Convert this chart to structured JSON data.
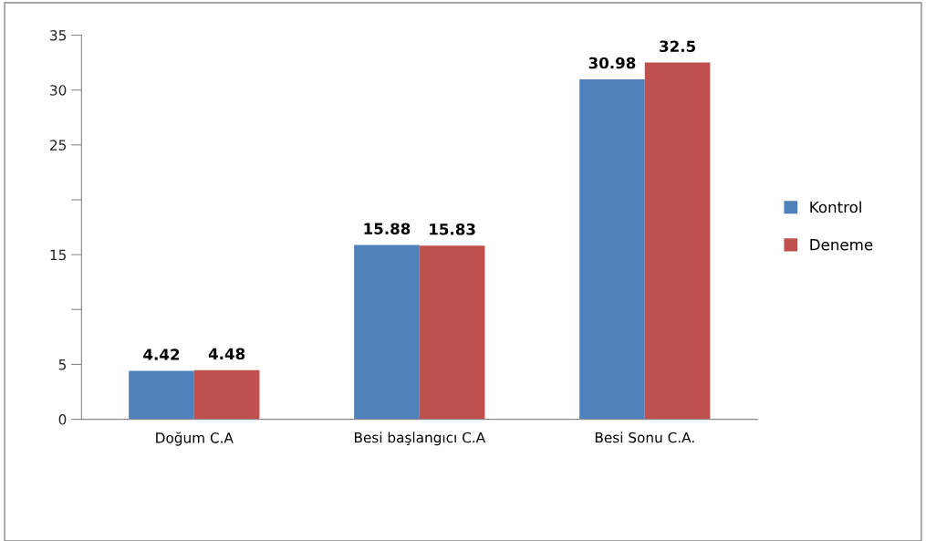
{
  "chart_data": {
    "type": "bar",
    "categories": [
      "Doğum C.A",
      "Besi başlangıcı C.A",
      "Besi Sonu C.A."
    ],
    "series": [
      {
        "name": "Kontrol",
        "color": "#4f81bd",
        "values": [
          4.42,
          15.88,
          30.98
        ]
      },
      {
        "name": "Deneme",
        "color": "#c0504d",
        "values": [
          4.48,
          15.83,
          32.5
        ]
      }
    ],
    "ylim": [
      0,
      35
    ],
    "yticks": [
      0,
      5,
      {
        "value": 10,
        "label": null
      },
      15,
      {
        "value": 20,
        "label": null
      },
      25,
      30,
      35
    ],
    "data_labels": true,
    "grid": false,
    "legend": "right"
  }
}
